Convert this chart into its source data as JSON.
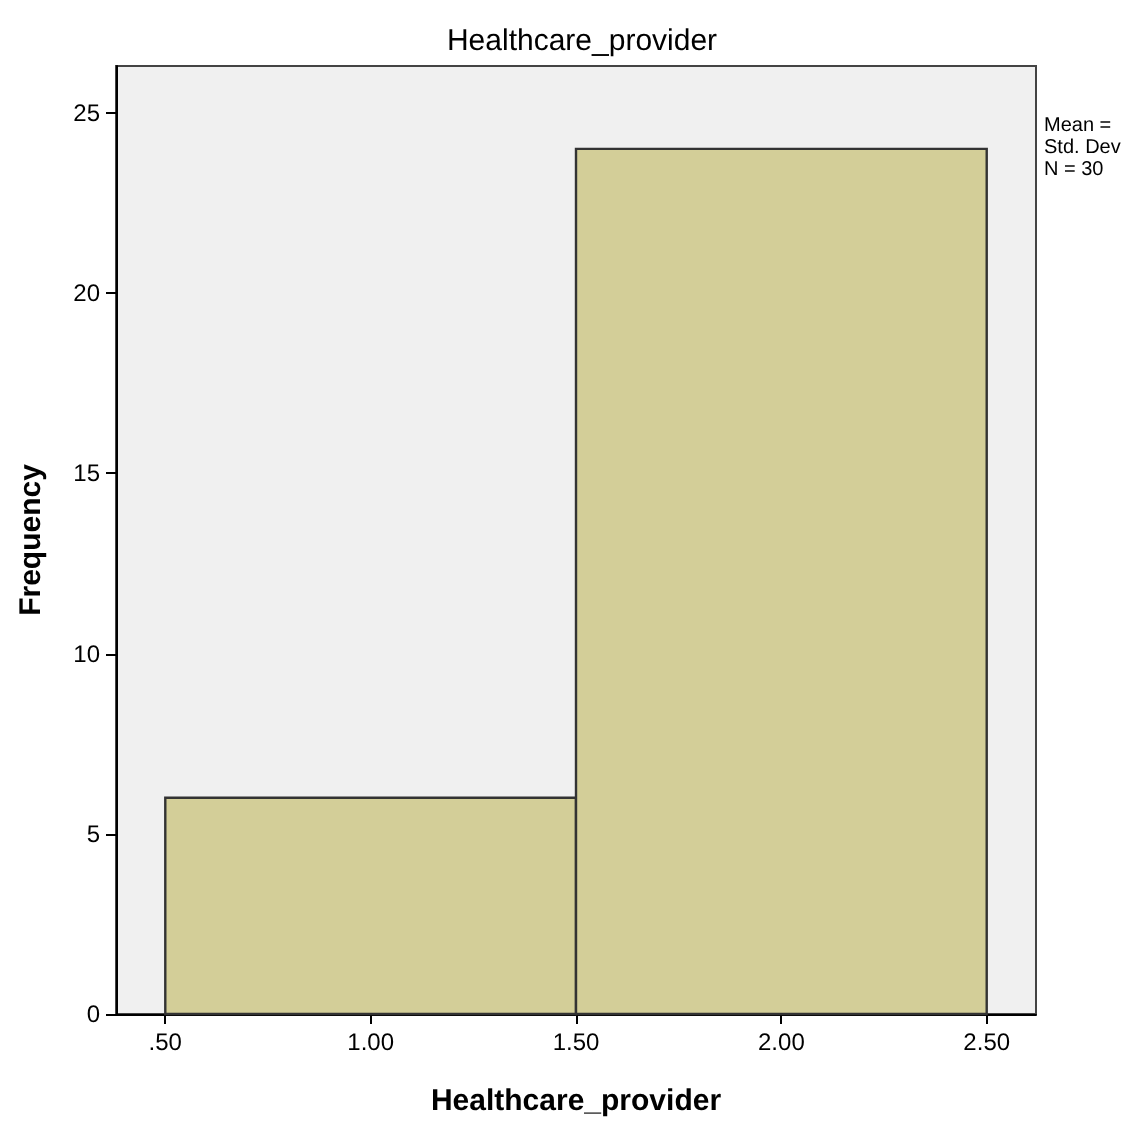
{
  "chart_data": {
    "type": "histogram",
    "title": "Healthcare_provider",
    "xlabel": "Healthcare_provider",
    "ylabel": "Frequency",
    "bins": [
      0.5,
      1.5,
      2.5
    ],
    "values": [
      6,
      24
    ],
    "color": "#d3ce98",
    "xlim": [
      0.38,
      2.62
    ],
    "xticks": [
      {
        "value": 0.5,
        "label": ".50"
      },
      {
        "value": 1.0,
        "label": "1.00"
      },
      {
        "value": 1.5,
        "label": "1.50"
      },
      {
        "value": 2.0,
        "label": "2.00"
      },
      {
        "value": 2.5,
        "label": "2.50"
      }
    ],
    "ylim": [
      0,
      26.3
    ],
    "yticks": [
      0,
      5,
      10,
      15,
      20,
      25
    ],
    "annotations": [
      "Mean =",
      "Std. Dev",
      "N = 30"
    ]
  }
}
